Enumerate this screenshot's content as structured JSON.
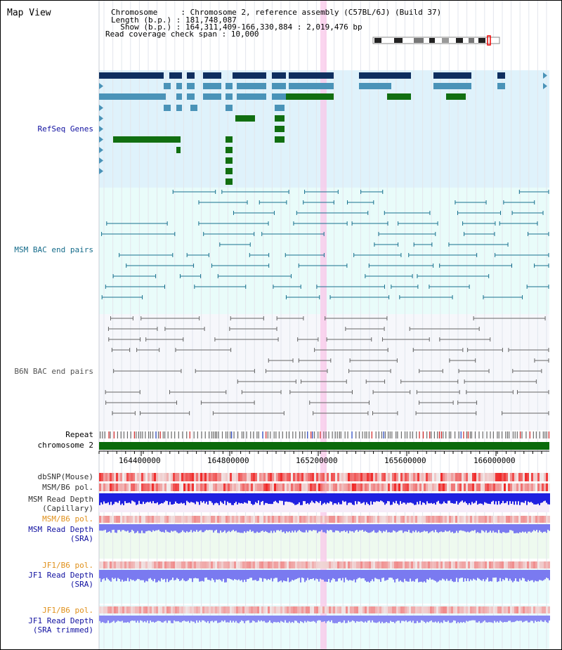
{
  "title": "Map View",
  "header": {
    "chromosome": "Chromosome     : Chromosome 2, reference assembly (C57BL/6J) (Build 37)",
    "length": "Length (b.p.) : 181,748,087",
    "show": "  Show (b.p.) : 164,311,409-166,330,884 : 2,019,476 bp",
    "coverage": "Read coverage check span : 10,000"
  },
  "tracks": {
    "refseq": "RefSeq Genes",
    "msm_bac": "MSM BAC end pairs",
    "b6n_bac": "B6N BAC end pairs",
    "repeat": "Repeat",
    "chromosome": "chromosome 2",
    "dbsnp": "dbSNP(Mouse)",
    "msm_b6_pol_1": "MSM/B6 pol.",
    "msm_depth_cap_1": "MSM Read Depth",
    "msm_depth_cap_2": "(Capillary)",
    "msm_b6_pol_2": "MSM/B6 pol.",
    "msm_depth_sra_1": "MSM Read Depth",
    "msm_depth_sra_2": "(SRA)",
    "jf1_pol_1": "JF1/B6 pol.",
    "jf1_depth_1": "JF1 Read Depth",
    "jf1_depth_2": "(SRA)",
    "jf1_pol_2": "JF1/B6 pol.",
    "jf1_trim_1": "JF1 Read Depth",
    "jf1_trim_2": "(SRA trimmed)"
  },
  "ruler": {
    "ticks": [
      "164400000",
      "164800000",
      "165200000",
      "165600000",
      "166000000"
    ]
  },
  "colors": {
    "refseq_bg": "#dff2fb",
    "msm_bac_bg": "#e9fcfa",
    "b6n_bac_bg": "#f4f6fb",
    "gene_dark": "#0f2f5f",
    "gene_mid": "#4a93b8",
    "gene_green": "#116f11",
    "bac_teal": "#17718f",
    "bac_gray": "#666666",
    "label_blue": "#1010a0",
    "label_teal": "#146b8a",
    "label_orange": "#e0901a",
    "chrom_green": "#0b6b0b",
    "highlight": "#f9c7ea"
  }
}
